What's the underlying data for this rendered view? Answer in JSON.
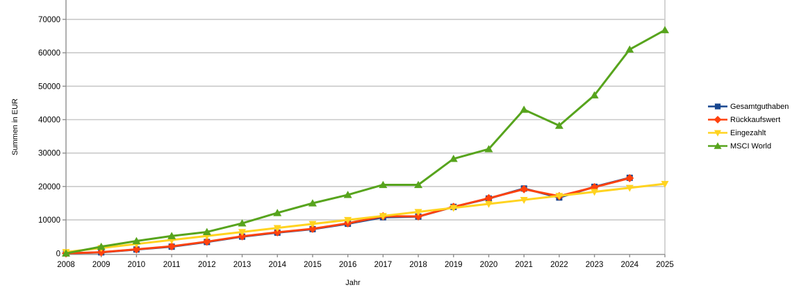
{
  "chart_data": {
    "type": "line",
    "title": "",
    "xlabel": "Jahr",
    "ylabel": "Summen in EUR",
    "x": [
      2008,
      2009,
      2010,
      2011,
      2012,
      2013,
      2014,
      2015,
      2016,
      2017,
      2018,
      2019,
      2020,
      2021,
      2022,
      2023,
      2024,
      2025
    ],
    "yticks": [
      0,
      10000,
      20000,
      30000,
      40000,
      50000,
      60000,
      70000
    ],
    "ylim": [
      0,
      75000
    ],
    "grid": true,
    "legend_position": "right",
    "series": [
      {
        "name": "Gesamtguthaben",
        "color": "#17468F",
        "marker": "square",
        "values": [
          0,
          300,
          1150,
          2000,
          3400,
          5000,
          6200,
          7250,
          8850,
          10800,
          11000,
          13900,
          16400,
          19400,
          16700,
          19900,
          22600
        ]
      },
      {
        "name": "Rückkaufswert",
        "color": "#FF420E",
        "marker": "diamond",
        "values": [
          0,
          350,
          1200,
          2100,
          3500,
          5100,
          6300,
          7350,
          9000,
          11100,
          11050,
          13900,
          16500,
          19200,
          17100,
          19800,
          22500
        ]
      },
      {
        "name": "Eingezahlt",
        "color": "#FFD320",
        "marker": "triangle-down",
        "values": [
          400,
          1600,
          2800,
          4000,
          5200,
          6400,
          7600,
          8800,
          10000,
          11200,
          12400,
          13600,
          14800,
          16000,
          17200,
          18400,
          19600,
          20800
        ]
      },
      {
        "name": "MSCI World",
        "color": "#57A41D",
        "marker": "triangle-up",
        "values": [
          0,
          2000,
          3700,
          5200,
          6400,
          9000,
          12100,
          15000,
          17500,
          20500,
          20500,
          28300,
          31200,
          43000,
          38200,
          47300,
          61000,
          66800
        ]
      }
    ]
  },
  "colors": {
    "gridline": "#C9C9C9",
    "axis": "#8E8E8E",
    "text": "#000000",
    "background": "#FFFFFF"
  }
}
